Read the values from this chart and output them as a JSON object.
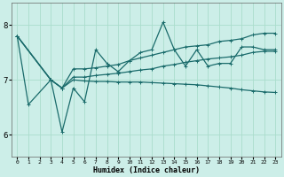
{
  "xlabel": "Humidex (Indice chaleur)",
  "xlim": [
    -0.5,
    23.5
  ],
  "ylim": [
    5.6,
    8.4
  ],
  "yticks": [
    6,
    7,
    8
  ],
  "xticks": [
    0,
    1,
    2,
    3,
    4,
    5,
    6,
    7,
    8,
    9,
    10,
    11,
    12,
    13,
    14,
    15,
    16,
    17,
    18,
    19,
    20,
    21,
    22,
    23
  ],
  "bg_color": "#cceee8",
  "grid_color": "#aaddcc",
  "line_color": "#1a6b6b",
  "lines": [
    {
      "x": [
        0,
        1,
        3,
        4,
        5,
        6,
        7,
        8,
        9,
        10,
        11,
        12,
        13,
        14,
        15,
        16,
        17,
        18,
        19,
        20,
        21,
        22,
        23
      ],
      "y": [
        7.8,
        6.55,
        7.0,
        6.05,
        6.85,
        6.6,
        7.55,
        7.3,
        7.15,
        7.35,
        7.5,
        7.55,
        8.05,
        7.55,
        7.25,
        7.55,
        7.25,
        7.3,
        7.3,
        7.6,
        7.6,
        7.55,
        7.55
      ]
    },
    {
      "x": [
        0,
        3,
        4,
        5,
        6,
        7,
        8,
        9,
        10,
        11,
        12,
        13,
        14,
        15,
        16,
        17,
        18,
        19,
        20,
        21,
        22,
        23
      ],
      "y": [
        7.8,
        7.0,
        6.85,
        7.05,
        7.05,
        7.08,
        7.1,
        7.12,
        7.15,
        7.18,
        7.2,
        7.25,
        7.28,
        7.32,
        7.35,
        7.38,
        7.4,
        7.42,
        7.45,
        7.5,
        7.52,
        7.52
      ]
    },
    {
      "x": [
        0,
        3,
        4,
        5,
        6,
        7,
        8,
        9,
        10,
        11,
        12,
        13,
        14,
        15,
        16,
        17,
        18,
        19,
        20,
        21,
        22,
        23
      ],
      "y": [
        7.8,
        7.0,
        6.85,
        7.2,
        7.2,
        7.22,
        7.25,
        7.28,
        7.35,
        7.4,
        7.45,
        7.5,
        7.55,
        7.6,
        7.62,
        7.64,
        7.7,
        7.72,
        7.75,
        7.82,
        7.85,
        7.85
      ]
    },
    {
      "x": [
        0,
        3,
        4,
        5,
        6,
        7,
        8,
        9,
        10,
        11,
        12,
        13,
        14,
        15,
        16,
        17,
        18,
        19,
        20,
        21,
        22,
        23
      ],
      "y": [
        7.8,
        7.0,
        6.85,
        7.0,
        6.98,
        6.97,
        6.97,
        6.96,
        6.96,
        6.96,
        6.95,
        6.94,
        6.93,
        6.92,
        6.91,
        6.89,
        6.87,
        6.85,
        6.82,
        6.8,
        6.78,
        6.77
      ]
    }
  ]
}
